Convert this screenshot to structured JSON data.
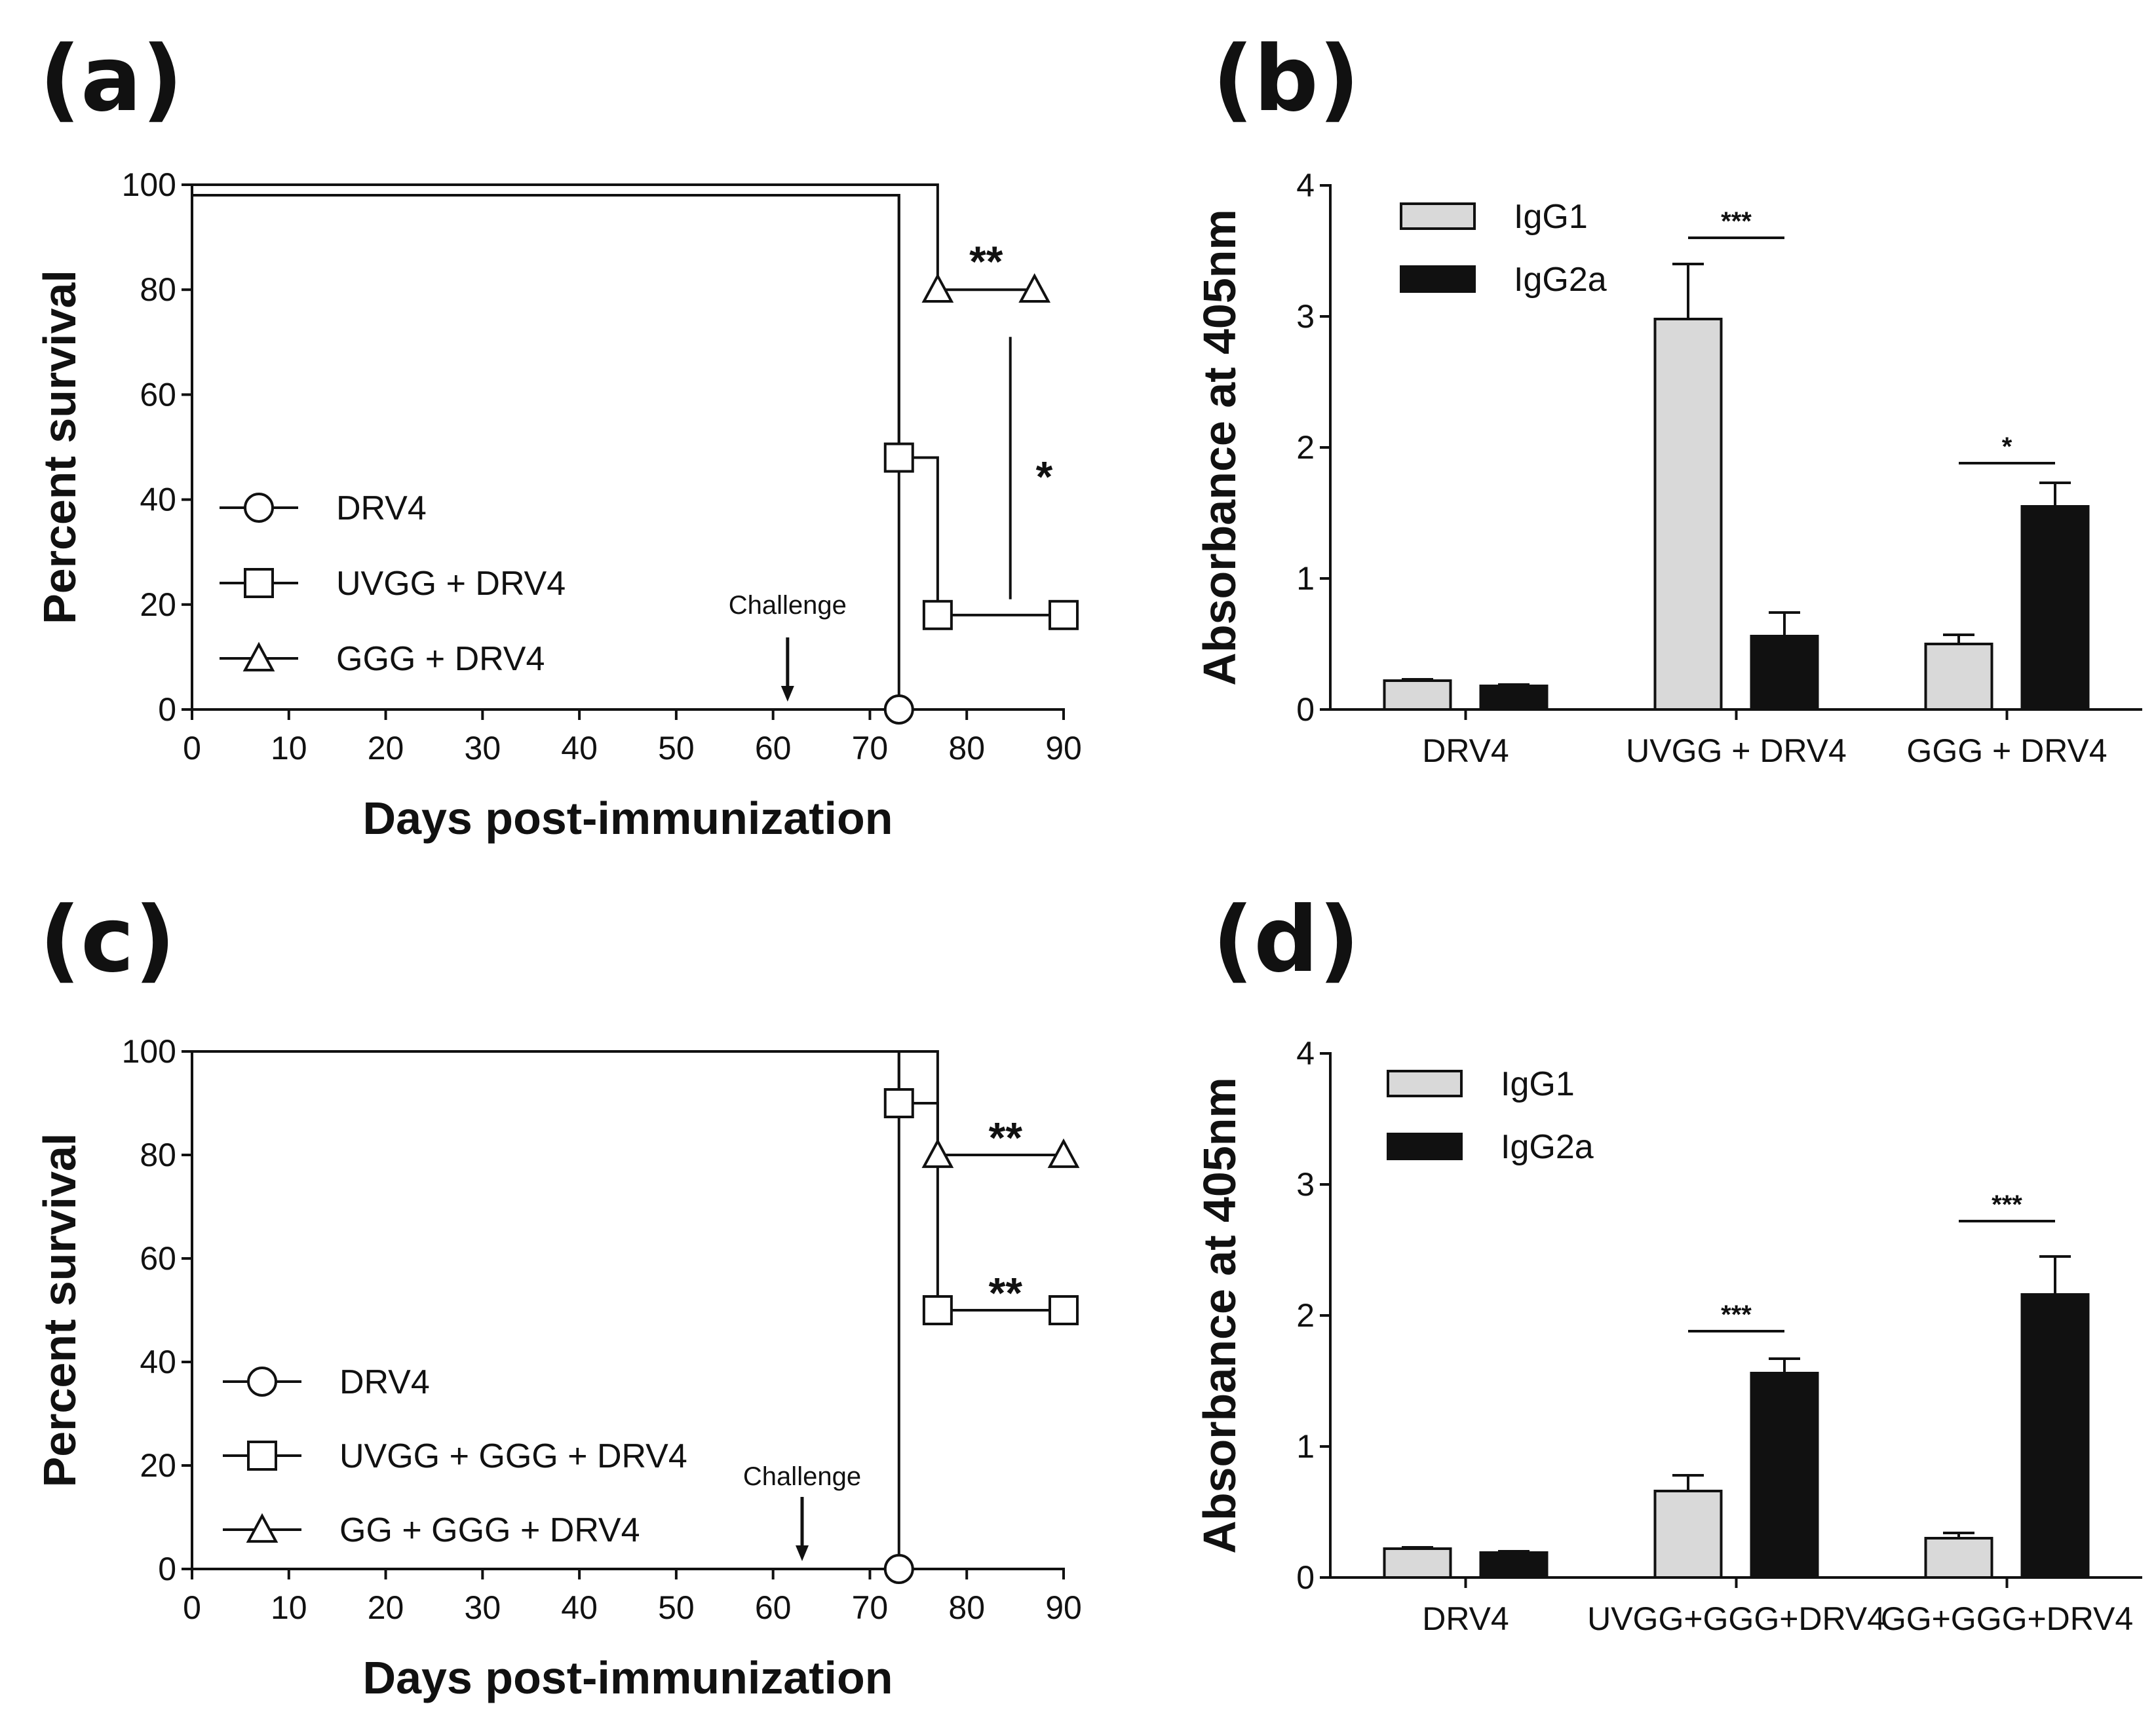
{
  "panels": [
    {
      "id": "a",
      "label": "(a)",
      "chart_data": {
        "type": "line",
        "subtype": "step-survival",
        "xlabel": "Days post-immunization",
        "ylabel": "Percent survival",
        "xlim": [
          0,
          90
        ],
        "ylim": [
          0,
          100
        ],
        "xticks": [
          0,
          10,
          20,
          30,
          40,
          50,
          60,
          70,
          80,
          90
        ],
        "yticks": [
          0,
          20,
          40,
          60,
          80,
          100
        ],
        "legend_position": "bottom-left",
        "series": [
          {
            "name": "DRV4",
            "marker": "circle",
            "points": [
              [
                0,
                98
              ],
              [
                73,
                98
              ],
              [
                73,
                0
              ]
            ],
            "marker_points": [
              [
                73,
                0
              ]
            ]
          },
          {
            "name": "UVGG + DRV4",
            "marker": "square",
            "points": [
              [
                0,
                98
              ],
              [
                73,
                98
              ],
              [
                73,
                48
              ],
              [
                77,
                48
              ],
              [
                77,
                18
              ],
              [
                90,
                18
              ]
            ],
            "marker_points": [
              [
                73,
                48
              ],
              [
                77,
                18
              ],
              [
                90,
                18
              ]
            ]
          },
          {
            "name": "GGG + DRV4",
            "marker": "triangle",
            "points": [
              [
                0,
                100
              ],
              [
                77,
                100
              ],
              [
                77,
                80
              ],
              [
                87,
                80
              ]
            ],
            "marker_points": [
              [
                77,
                80
              ],
              [
                87,
                80
              ]
            ]
          }
        ],
        "annotations": [
          {
            "text": "**",
            "x": 82,
            "y": 85
          },
          {
            "text": "*",
            "x": 88,
            "y": 44
          },
          {
            "text": "Challenge",
            "x": 61.5,
            "y": 20
          }
        ],
        "challenge_arrow_x": 61.5
      }
    },
    {
      "id": "b",
      "label": "(b)",
      "chart_data": {
        "type": "bar",
        "ylabel": "Absorbance at 405nm",
        "ylim": [
          0,
          4
        ],
        "yticks": [
          0,
          1,
          2,
          3,
          4
        ],
        "categories": [
          "DRV4",
          "UVGG + DRV4",
          "GGG + DRV4"
        ],
        "legend_position": "top-left",
        "series": [
          {
            "name": "IgG1",
            "color": "#d9d9d9",
            "values": [
              0.22,
              2.98,
              0.5
            ],
            "errors": [
              0.01,
              0.42,
              0.07
            ]
          },
          {
            "name": "IgG2a",
            "color": "#111111",
            "values": [
              0.18,
              0.56,
              1.55
            ],
            "errors": [
              0.01,
              0.18,
              0.18
            ]
          }
        ],
        "significance": [
          {
            "category_index": 1,
            "text": "***",
            "y": 3.6
          },
          {
            "category_index": 2,
            "text": "*",
            "y": 1.88
          }
        ]
      }
    },
    {
      "id": "c",
      "label": "(c)",
      "chart_data": {
        "type": "line",
        "subtype": "step-survival",
        "xlabel": "Days post-immunization",
        "ylabel": "Percent survival",
        "xlim": [
          0,
          90
        ],
        "ylim": [
          0,
          100
        ],
        "xticks": [
          0,
          10,
          20,
          30,
          40,
          50,
          60,
          70,
          80,
          90
        ],
        "yticks": [
          0,
          20,
          40,
          60,
          80,
          100
        ],
        "legend_position": "bottom-left",
        "series": [
          {
            "name": "DRV4",
            "marker": "circle",
            "points": [
              [
                0,
                100
              ],
              [
                73,
                100
              ],
              [
                73,
                0
              ]
            ],
            "marker_points": [
              [
                73,
                0
              ]
            ]
          },
          {
            "name": "UVGG + GGG + DRV4",
            "marker": "square",
            "points": [
              [
                0,
                100
              ],
              [
                73,
                100
              ],
              [
                73,
                90
              ],
              [
                77,
                90
              ],
              [
                77,
                50
              ],
              [
                90,
                50
              ]
            ],
            "marker_points": [
              [
                73,
                90
              ],
              [
                77,
                50
              ],
              [
                90,
                50
              ]
            ]
          },
          {
            "name": "GG + GGG + DRV4",
            "marker": "triangle",
            "points": [
              [
                0,
                100
              ],
              [
                77,
                100
              ],
              [
                77,
                80
              ],
              [
                90,
                80
              ]
            ],
            "marker_points": [
              [
                77,
                80
              ],
              [
                90,
                80
              ]
            ]
          }
        ],
        "annotations": [
          {
            "text": "**",
            "x": 84,
            "y": 83
          },
          {
            "text": "**",
            "x": 84,
            "y": 53
          },
          {
            "text": "Challenge",
            "x": 63,
            "y": 18
          }
        ],
        "challenge_arrow_x": 63
      }
    },
    {
      "id": "d",
      "label": "(d)",
      "chart_data": {
        "type": "bar",
        "ylabel": "Absorbance at 405nm",
        "ylim": [
          0,
          4
        ],
        "yticks": [
          0,
          1,
          2,
          3,
          4
        ],
        "categories": [
          "DRV4",
          "UVGG+GGG+DRV4",
          "GG+GGG+DRV4"
        ],
        "legend_position": "top-left",
        "series": [
          {
            "name": "IgG1",
            "color": "#d9d9d9",
            "values": [
              0.22,
              0.66,
              0.3
            ],
            "errors": [
              0.01,
              0.12,
              0.04
            ]
          },
          {
            "name": "IgG2a",
            "color": "#111111",
            "values": [
              0.19,
              1.56,
              2.16
            ],
            "errors": [
              0.01,
              0.11,
              0.29
            ]
          }
        ],
        "significance": [
          {
            "category_index": 1,
            "text": "***",
            "y": 1.88
          },
          {
            "category_index": 2,
            "text": "***",
            "y": 2.72
          }
        ]
      }
    }
  ]
}
